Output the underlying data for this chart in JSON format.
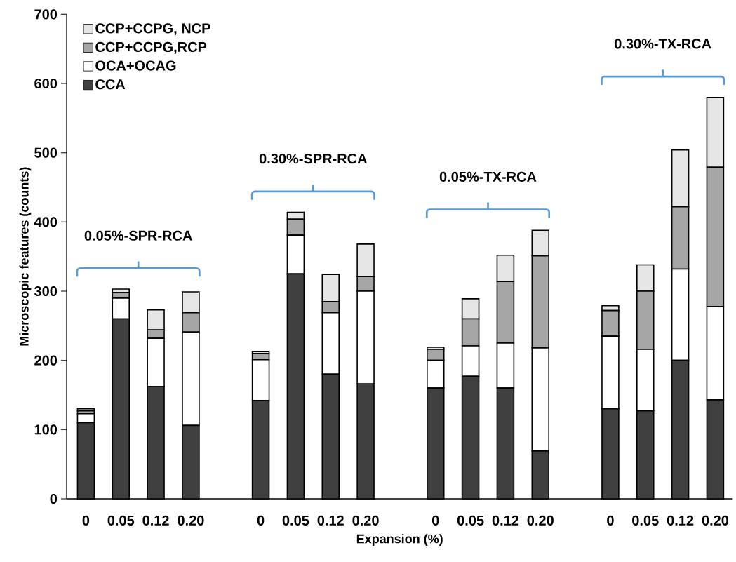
{
  "chart_data": {
    "type": "bar",
    "stacked": true,
    "xlabel": "Expansion (%)",
    "ylabel": "Microscopic features (counts)",
    "categories": [
      "0",
      "0.05",
      "0.12",
      "0.20",
      null,
      "0",
      "0.05",
      "0.12",
      "0.20",
      null,
      "0",
      "0.05",
      "0.12",
      "0.20",
      null,
      "0",
      "0.05",
      "0.12",
      "0.20"
    ],
    "series": [
      {
        "name": "CCA",
        "color": "#404040",
        "values": [
          110,
          260,
          162,
          106,
          null,
          142,
          325,
          180,
          166,
          null,
          160,
          177,
          160,
          69,
          null,
          130,
          127,
          200,
          143
        ]
      },
      {
        "name": "OCA+OCAG",
        "color": "#ffffff",
        "values": [
          13,
          30,
          70,
          135,
          null,
          59,
          56,
          89,
          134,
          null,
          40,
          44,
          65,
          149,
          null,
          105,
          89,
          132,
          135
        ]
      },
      {
        "name": "CCP+CCPG,RCP",
        "color": "#a6a6a6",
        "values": [
          4,
          8,
          12,
          28,
          null,
          9,
          23,
          16,
          21,
          null,
          16,
          39,
          89,
          133,
          null,
          37,
          84,
          90,
          201
        ]
      },
      {
        "name": "CCP+CCPG, NCP",
        "color": "#e7e6e6",
        "values": [
          3,
          5,
          29,
          30,
          null,
          3,
          10,
          39,
          47,
          null,
          3,
          29,
          38,
          37,
          null,
          7,
          38,
          82,
          101
        ]
      }
    ],
    "annotations": [
      "0.05%-SPR-RCA",
      "0.30%-SPR-RCA",
      "0.05%-TX-RCA",
      "0.30%-TX-RCA"
    ],
    "ylim": [
      0,
      700
    ],
    "yticks": [
      0,
      100,
      200,
      300,
      400,
      500,
      600,
      700
    ],
    "grid": false,
    "legend": "top left"
  }
}
